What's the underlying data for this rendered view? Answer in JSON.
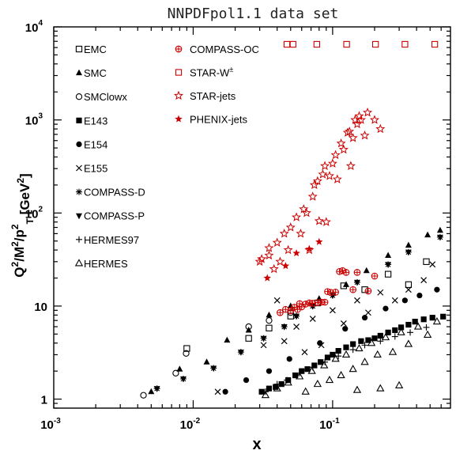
{
  "chart_data": {
    "type": "scatter",
    "title": "NNPDFpol1.1 data set",
    "xlabel": "x",
    "ylabel_html": [
      "Q",
      "2",
      "/M",
      "2",
      "/p",
      "2",
      "T",
      " [GeV",
      "2",
      "]"
    ],
    "x_scale": "log",
    "y_scale": "log",
    "xlim": [
      0.001,
      0.7
    ],
    "ylim": [
      0.8,
      10000
    ],
    "x_ticks": [
      {
        "base": "10",
        "exp": "-3",
        "value": 0.001
      },
      {
        "base": "10",
        "exp": "-2",
        "value": 0.01
      },
      {
        "base": "10",
        "exp": "-1",
        "value": 0.1
      }
    ],
    "y_ticks": [
      {
        "label": "1",
        "value": 1
      },
      {
        "label": "10",
        "value": 10
      },
      {
        "label": "10",
        "exp": "2",
        "value": 100
      },
      {
        "label": "10",
        "exp": "3",
        "value": 1000
      },
      {
        "label": "10",
        "exp": "4",
        "value": 10000
      }
    ],
    "legend_placement": "top-left",
    "series": [
      {
        "name": "EMC",
        "marker": "open-square",
        "color": "#000000",
        "points": [
          [
            0.009,
            3.5
          ],
          [
            0.025,
            4.5
          ],
          [
            0.035,
            5.8
          ],
          [
            0.05,
            7.8
          ],
          [
            0.078,
            10.8
          ],
          [
            0.12,
            16.5
          ],
          [
            0.17,
            15.0
          ],
          [
            0.25,
            22.0
          ],
          [
            0.35,
            17.0
          ],
          [
            0.47,
            30.0
          ]
        ]
      },
      {
        "name": "SMC",
        "marker": "filled-triangle-up",
        "color": "#000000",
        "points": [
          [
            0.005,
            1.2
          ],
          [
            0.008,
            2.1
          ],
          [
            0.0125,
            2.5
          ],
          [
            0.0175,
            4.3
          ],
          [
            0.025,
            5.5
          ],
          [
            0.035,
            8.0
          ],
          [
            0.05,
            10.0
          ],
          [
            0.08,
            12.0
          ],
          [
            0.125,
            17.0
          ],
          [
            0.175,
            24.0
          ],
          [
            0.25,
            35.0
          ],
          [
            0.35,
            45.0
          ],
          [
            0.48,
            58.0
          ],
          [
            0.59,
            65.0
          ]
        ]
      },
      {
        "name": "SMClowx",
        "marker": "open-circle",
        "color": "#000000",
        "points": [
          [
            0.0044,
            1.1
          ],
          [
            0.0075,
            1.9
          ],
          [
            0.0089,
            3.1
          ],
          [
            0.025,
            6.0
          ],
          [
            0.035,
            7.0
          ],
          [
            0.05,
            8.5
          ]
        ]
      },
      {
        "name": "E143",
        "marker": "filled-square",
        "color": "#000000",
        "points": [
          [
            0.031,
            1.2
          ],
          [
            0.035,
            1.3
          ],
          [
            0.039,
            1.35
          ],
          [
            0.043,
            1.45
          ],
          [
            0.048,
            1.6
          ],
          [
            0.054,
            1.8
          ],
          [
            0.06,
            2.0
          ],
          [
            0.066,
            2.1
          ],
          [
            0.074,
            2.3
          ],
          [
            0.082,
            2.5
          ],
          [
            0.092,
            2.8
          ],
          [
            0.1,
            3.0
          ],
          [
            0.11,
            3.3
          ],
          [
            0.125,
            3.6
          ],
          [
            0.14,
            3.9
          ],
          [
            0.16,
            4.2
          ],
          [
            0.18,
            4.3
          ],
          [
            0.2,
            4.5
          ],
          [
            0.22,
            4.8
          ],
          [
            0.25,
            5.2
          ],
          [
            0.28,
            5.5
          ],
          [
            0.31,
            5.9
          ],
          [
            0.35,
            6.3
          ],
          [
            0.39,
            6.8
          ],
          [
            0.45,
            7.2
          ],
          [
            0.52,
            7.5
          ],
          [
            0.62,
            7.7
          ]
        ]
      },
      {
        "name": "E154",
        "marker": "filled-circle",
        "color": "#000000",
        "points": [
          [
            0.017,
            1.2
          ],
          [
            0.024,
            1.6
          ],
          [
            0.035,
            2.0
          ],
          [
            0.049,
            2.7
          ],
          [
            0.081,
            4.0
          ],
          [
            0.123,
            5.7
          ],
          [
            0.17,
            7.5
          ],
          [
            0.24,
            9.4
          ],
          [
            0.33,
            11.5
          ],
          [
            0.42,
            13.0
          ],
          [
            0.56,
            15.0
          ]
        ]
      },
      {
        "name": "E155",
        "marker": "x",
        "color": "#000000",
        "points": [
          [
            0.015,
            1.2
          ],
          [
            0.032,
            3.8
          ],
          [
            0.04,
            11.5
          ],
          [
            0.045,
            4.2
          ],
          [
            0.055,
            6.0
          ],
          [
            0.063,
            3.2
          ],
          [
            0.072,
            7.3
          ],
          [
            0.083,
            3.8
          ],
          [
            0.1,
            9.0
          ],
          [
            0.12,
            6.5
          ],
          [
            0.15,
            11.5
          ],
          [
            0.18,
            8.5
          ],
          [
            0.22,
            14.0
          ],
          [
            0.28,
            11.5
          ],
          [
            0.35,
            15.0
          ],
          [
            0.45,
            19.0
          ],
          [
            0.52,
            28.0
          ]
        ]
      },
      {
        "name": "COMPASS-D",
        "marker": "asterisk",
        "color": "#000000",
        "points": [
          [
            0.0055,
            1.3
          ],
          [
            0.0085,
            1.65
          ],
          [
            0.014,
            2.15
          ],
          [
            0.022,
            3.2
          ],
          [
            0.032,
            4.5
          ],
          [
            0.045,
            6.0
          ],
          [
            0.055,
            7.8
          ],
          [
            0.072,
            10.0
          ],
          [
            0.1,
            13.0
          ],
          [
            0.15,
            18.0
          ],
          [
            0.25,
            28.0
          ],
          [
            0.35,
            38.0
          ],
          [
            0.59,
            55.0
          ]
        ]
      },
      {
        "name": "COMPASS-P",
        "marker": "filled-triangle-down",
        "color": "#000000",
        "points": [
          [
            0.0055,
            1.3
          ],
          [
            0.0085,
            1.65
          ],
          [
            0.014,
            2.15
          ],
          [
            0.022,
            3.2
          ],
          [
            0.032,
            4.5
          ],
          [
            0.045,
            6.0
          ],
          [
            0.055,
            7.8
          ],
          [
            0.072,
            10.0
          ],
          [
            0.1,
            13.0
          ],
          [
            0.15,
            18.0
          ],
          [
            0.25,
            28.0
          ],
          [
            0.35,
            38.0
          ],
          [
            0.59,
            55.0
          ]
        ]
      },
      {
        "name": "HERMES97",
        "marker": "plus",
        "color": "#000000",
        "points": [
          [
            0.033,
            1.2
          ],
          [
            0.04,
            1.45
          ],
          [
            0.047,
            1.6
          ],
          [
            0.058,
            1.9
          ],
          [
            0.072,
            2.2
          ],
          [
            0.088,
            2.5
          ],
          [
            0.11,
            2.9
          ],
          [
            0.14,
            3.4
          ],
          [
            0.17,
            3.8
          ],
          [
            0.22,
            4.2
          ],
          [
            0.28,
            4.7
          ],
          [
            0.36,
            5.2
          ],
          [
            0.47,
            5.9
          ]
        ]
      },
      {
        "name": "HERMES",
        "marker": "open-triangle-up",
        "color": "#000000",
        "points": [
          [
            0.033,
            1.1
          ],
          [
            0.04,
            1.3
          ],
          [
            0.048,
            1.5
          ],
          [
            0.058,
            1.75
          ],
          [
            0.064,
            1.2
          ],
          [
            0.071,
            2.0
          ],
          [
            0.078,
            1.45
          ],
          [
            0.087,
            2.3
          ],
          [
            0.095,
            1.6
          ],
          [
            0.105,
            2.7
          ],
          [
            0.115,
            1.8
          ],
          [
            0.125,
            3.0
          ],
          [
            0.14,
            2.1
          ],
          [
            0.155,
            3.5
          ],
          [
            0.17,
            2.5
          ],
          [
            0.19,
            4.0
          ],
          [
            0.21,
            3.0
          ],
          [
            0.24,
            4.6
          ],
          [
            0.27,
            3.2
          ],
          [
            0.31,
            5.2
          ],
          [
            0.35,
            3.9
          ],
          [
            0.41,
            6.0
          ],
          [
            0.48,
            4.9
          ],
          [
            0.56,
            6.8
          ],
          [
            0.15,
            1.25
          ],
          [
            0.22,
            1.3
          ],
          [
            0.3,
            1.4
          ]
        ]
      },
      {
        "name": "COMPASS-OC",
        "marker": "open-circle-cross",
        "color": "#cc0000",
        "points": [
          [
            0.042,
            8.5
          ],
          [
            0.046,
            9.2
          ],
          [
            0.05,
            8.9
          ],
          [
            0.053,
            9.7
          ],
          [
            0.056,
            9.2
          ],
          [
            0.058,
            10.6
          ],
          [
            0.06,
            9.8
          ],
          [
            0.064,
            10.5
          ],
          [
            0.068,
            10.8
          ],
          [
            0.072,
            10.7
          ],
          [
            0.078,
            10.9
          ],
          [
            0.083,
            11.0
          ],
          [
            0.088,
            11.0
          ],
          [
            0.092,
            14.3
          ],
          [
            0.097,
            14.0
          ],
          [
            0.105,
            14.1
          ],
          [
            0.112,
            23.5
          ],
          [
            0.118,
            24.0
          ],
          [
            0.125,
            23.0
          ],
          [
            0.14,
            15.0
          ],
          [
            0.15,
            23.0
          ],
          [
            0.18,
            14.5
          ],
          [
            0.2,
            21.0
          ]
        ]
      },
      {
        "name": "STAR-W±",
        "marker": "open-square",
        "color": "#cc0000",
        "points": [
          [
            0.047,
            6500
          ],
          [
            0.052,
            6500
          ],
          [
            0.077,
            6500
          ],
          [
            0.126,
            6500
          ],
          [
            0.203,
            6500
          ],
          [
            0.33,
            6500
          ],
          [
            0.54,
            6500
          ]
        ]
      },
      {
        "name": "STAR-jets",
        "marker": "open-star",
        "color": "#cc0000",
        "points": [
          [
            0.03,
            30
          ],
          [
            0.031,
            32
          ],
          [
            0.035,
            35
          ],
          [
            0.035,
            42
          ],
          [
            0.038,
            25
          ],
          [
            0.04,
            48
          ],
          [
            0.042,
            30
          ],
          [
            0.045,
            60
          ],
          [
            0.048,
            40
          ],
          [
            0.05,
            70
          ],
          [
            0.055,
            90
          ],
          [
            0.059,
            60
          ],
          [
            0.062,
            110
          ],
          [
            0.065,
            100
          ],
          [
            0.068,
            40
          ],
          [
            0.072,
            150
          ],
          [
            0.074,
            200
          ],
          [
            0.078,
            220
          ],
          [
            0.08,
            82
          ],
          [
            0.085,
            260
          ],
          [
            0.088,
            320
          ],
          [
            0.09,
            80
          ],
          [
            0.095,
            250
          ],
          [
            0.1,
            340
          ],
          [
            0.105,
            420
          ],
          [
            0.108,
            230
          ],
          [
            0.115,
            560
          ],
          [
            0.12,
            480
          ],
          [
            0.128,
            730
          ],
          [
            0.132,
            750
          ],
          [
            0.135,
            320
          ],
          [
            0.14,
            640
          ],
          [
            0.145,
            1000
          ],
          [
            0.15,
            900
          ],
          [
            0.155,
            1100
          ],
          [
            0.16,
            1000
          ],
          [
            0.17,
            680
          ],
          [
            0.178,
            1200
          ],
          [
            0.2,
            1000
          ],
          [
            0.22,
            800
          ]
        ]
      },
      {
        "name": "PHENIX-jets",
        "marker": "filled-star",
        "color": "#cc0000",
        "points": [
          [
            0.034,
            20
          ],
          [
            0.046,
            27
          ],
          [
            0.055,
            37
          ],
          [
            0.068,
            41
          ],
          [
            0.08,
            49
          ]
        ]
      }
    ],
    "legend": {
      "left": [
        "EMC",
        "SMC",
        "SMClowx",
        "E143",
        "E154",
        "E155",
        "COMPASS-D",
        "COMPASS-P",
        "HERMES97",
        "HERMES"
      ],
      "right": [
        "COMPASS-OC",
        "STAR-W±",
        "STAR-jets",
        "PHENIX-jets"
      ]
    },
    "legend_labels": {
      "STAR-W": "STAR-W",
      "STAR-W-sup": "±"
    }
  }
}
